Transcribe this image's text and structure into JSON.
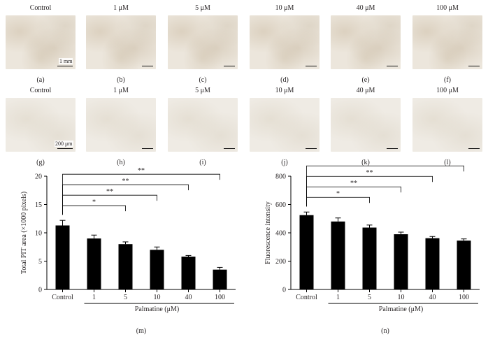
{
  "top_row": {
    "headers": [
      "Control",
      "1 μM",
      "5 μM",
      "10 μM",
      "40 μM",
      "100 μM"
    ],
    "letters": [
      "(a)",
      "(b)",
      "(c)",
      "(d)",
      "(e)",
      "(f)"
    ],
    "scale_label": "1 mm"
  },
  "bottom_row": {
    "headers": [
      "Control",
      "1 μM",
      "5 μM",
      "10 μM",
      "40 μM",
      "100 μM"
    ],
    "letters": [
      "(g)",
      "(h)",
      "(i)",
      "(j)",
      "(k)",
      "(l)"
    ],
    "scale_label": "200 μm"
  },
  "chart_data": [
    {
      "type": "bar",
      "panel": "(m)",
      "categories": [
        "Control",
        "1",
        "5",
        "10",
        "40",
        "100"
      ],
      "values": [
        11.3,
        9.0,
        8.0,
        7.0,
        5.8,
        3.5
      ],
      "errors": [
        0.9,
        0.6,
        0.4,
        0.5,
        0.2,
        0.4
      ],
      "ylabel": "Total PIT area (×1000 pixels)",
      "xlabel": "Palmatine (μM)",
      "ylim": [
        0,
        20
      ],
      "yticks": [
        0,
        5,
        10,
        15,
        20
      ],
      "significance": [
        {
          "to": "5",
          "label": "*"
        },
        {
          "to": "10",
          "label": "**"
        },
        {
          "to": "40",
          "label": "**"
        },
        {
          "to": "100",
          "label": "**"
        }
      ],
      "bar_color": "#000000"
    },
    {
      "type": "bar",
      "panel": "(n)",
      "categories": [
        "Control",
        "1",
        "5",
        "10",
        "40",
        "100"
      ],
      "values": [
        525,
        480,
        437,
        390,
        362,
        345
      ],
      "errors": [
        22,
        25,
        18,
        15,
        12,
        12
      ],
      "ylabel": "Fluorescence intensity",
      "xlabel": "Palmatine (μM)",
      "ylim": [
        0,
        800
      ],
      "yticks": [
        0,
        200,
        400,
        600,
        800
      ],
      "significance": [
        {
          "to": "5",
          "label": "*"
        },
        {
          "to": "10",
          "label": "**"
        },
        {
          "to": "40",
          "label": "**"
        },
        {
          "to": "100",
          "label": "**"
        }
      ],
      "bar_color": "#000000"
    }
  ]
}
